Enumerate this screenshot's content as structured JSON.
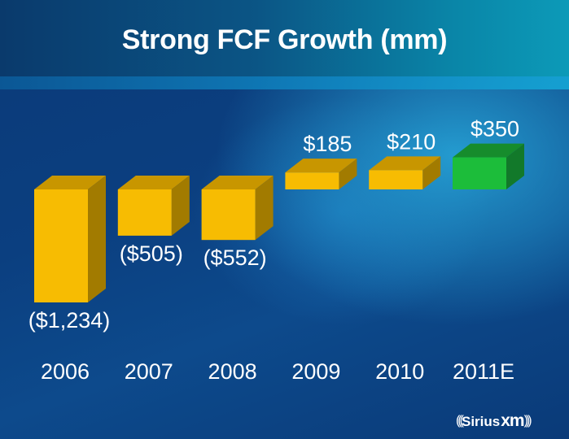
{
  "title": "Strong FCF Growth (mm)",
  "logo_text": "SiriusXM",
  "colors": {
    "actual_front": "#f7bc02",
    "actual_top": "#c89600",
    "actual_side": "#a27b00",
    "estimate_front": "#1cbd3a",
    "estimate_top": "#168c2c",
    "estimate_side": "#12792a",
    "label": "#ffffff"
  },
  "chart_data": {
    "type": "bar",
    "title": "Strong FCF Growth (mm)",
    "xlabel": "",
    "ylabel": "",
    "categories": [
      "2006",
      "2007",
      "2008",
      "2009",
      "2010",
      "2011E"
    ],
    "values": [
      -1234,
      -505,
      -552,
      185,
      210,
      350
    ],
    "data_labels": [
      "($1,234)",
      "($505)",
      "($552)",
      "$185",
      "$210",
      "$350"
    ],
    "estimate": [
      false,
      false,
      false,
      false,
      false,
      true
    ],
    "ylim": [
      -1300,
      400
    ],
    "grid": false,
    "legend": "none",
    "style": "3d-column"
  }
}
